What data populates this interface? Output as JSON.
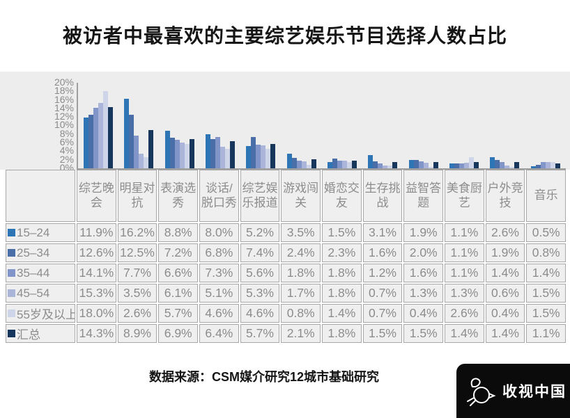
{
  "title": "被访者中最喜欢的主要综艺娱乐节目选择人数占比",
  "chart_data": {
    "type": "bar",
    "title": "被访者中最喜欢的主要综艺娱乐节目选择人数占比",
    "categories": [
      "综艺晚会",
      "明星对抗",
      "表演选秀",
      "谈话/脱口秀",
      "综艺娱乐报道",
      "游戏闯关",
      "婚恋交友",
      "生存挑战",
      "益智答题",
      "美食厨艺",
      "户外竞技",
      "音乐"
    ],
    "series": [
      {
        "name": "15–24",
        "color": "#2e75b6",
        "values": [
          11.9,
          16.2,
          8.8,
          8.0,
          5.2,
          3.5,
          1.5,
          3.1,
          1.9,
          1.1,
          2.6,
          0.5
        ]
      },
      {
        "name": "25–34",
        "color": "#4a6fa8",
        "values": [
          12.6,
          12.5,
          7.2,
          6.8,
          7.4,
          2.4,
          2.3,
          1.6,
          2.0,
          1.1,
          1.9,
          0.8
        ]
      },
      {
        "name": "35–44",
        "color": "#8295c8",
        "values": [
          14.1,
          7.7,
          6.6,
          7.3,
          5.6,
          1.8,
          1.8,
          1.2,
          1.6,
          1.1,
          1.4,
          1.4
        ]
      },
      {
        "name": "45–54",
        "color": "#aab5d9",
        "values": [
          15.3,
          3.5,
          6.1,
          5.1,
          5.3,
          1.7,
          1.8,
          0.7,
          1.3,
          1.3,
          0.6,
          1.5
        ]
      },
      {
        "name": "55岁及以上",
        "color": "#ced5e9",
        "values": [
          18.0,
          2.6,
          5.7,
          4.6,
          4.6,
          0.8,
          1.4,
          0.7,
          0.4,
          2.6,
          0.4,
          1.5
        ]
      },
      {
        "name": "汇总",
        "color": "#17365c",
        "values": [
          14.3,
          8.9,
          6.9,
          6.4,
          5.7,
          2.1,
          1.8,
          1.5,
          1.5,
          1.4,
          1.4,
          1.1
        ]
      }
    ],
    "xlabel": "",
    "ylabel": "",
    "ylim": [
      0,
      20
    ],
    "ytick_step": 2,
    "ytick_labels": [
      "20%",
      "18%",
      "16%",
      "14%",
      "12%",
      "10%",
      "8%",
      "6%",
      "4%",
      "2%",
      "0%"
    ],
    "value_suffix": "%",
    "grid": false,
    "legend_position": "table-row-headers"
  },
  "source": "数据来源：CSM媒介研究12城市基础研究",
  "logo": {
    "text": "收视中国"
  },
  "colors": {
    "chart_background": "#ededee",
    "cell_background": "#efefef",
    "cell_border": "#a8a8a8",
    "table_text": "#8c8c8c",
    "axis_line": "#9f9f9f",
    "logo_background": "#0b0b0b",
    "title_text": "#151515"
  }
}
